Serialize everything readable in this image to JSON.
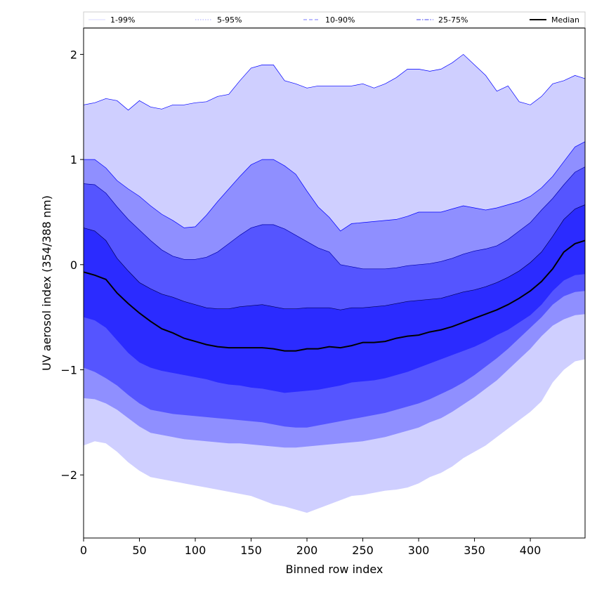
{
  "chart_data": {
    "type": "area",
    "xlabel": "Binned row index",
    "ylabel": "UV aerosol index (354/388 nm)",
    "xlim": [
      0,
      449
    ],
    "ylim": [
      -2.6,
      2.25
    ],
    "xticks": [
      0,
      50,
      100,
      150,
      200,
      250,
      300,
      350,
      400
    ],
    "yticks": [
      -2,
      -1,
      0,
      1,
      2
    ],
    "grid": false,
    "legend": "top",
    "x": [
      0,
      10,
      20,
      30,
      40,
      50,
      60,
      70,
      80,
      90,
      100,
      110,
      120,
      130,
      140,
      150,
      160,
      170,
      180,
      190,
      200,
      210,
      220,
      230,
      240,
      250,
      260,
      270,
      280,
      290,
      300,
      310,
      320,
      330,
      340,
      350,
      360,
      370,
      380,
      390,
      400,
      410,
      420,
      430,
      440,
      449
    ],
    "bands": [
      {
        "name": "1-99%",
        "color": "#cfcfff",
        "line_color": "#0000ff",
        "lower": [
          -1.72,
          -1.68,
          -1.7,
          -1.78,
          -1.88,
          -1.96,
          -2.02,
          -2.04,
          -2.06,
          -2.08,
          -2.1,
          -2.12,
          -2.14,
          -2.16,
          -2.18,
          -2.2,
          -2.24,
          -2.28,
          -2.3,
          -2.33,
          -2.36,
          -2.32,
          -2.28,
          -2.24,
          -2.2,
          -2.19,
          -2.17,
          -2.15,
          -2.14,
          -2.12,
          -2.08,
          -2.02,
          -1.98,
          -1.92,
          -1.84,
          -1.78,
          -1.72,
          -1.64,
          -1.56,
          -1.48,
          -1.4,
          -1.3,
          -1.12,
          -1.0,
          -0.92,
          -0.9
        ],
        "upper": [
          1.52,
          1.54,
          1.58,
          1.56,
          1.47,
          1.56,
          1.5,
          1.48,
          1.52,
          1.52,
          1.54,
          1.55,
          1.6,
          1.62,
          1.75,
          1.87,
          1.9,
          1.9,
          1.75,
          1.72,
          1.68,
          1.7,
          1.7,
          1.7,
          1.7,
          1.72,
          1.68,
          1.72,
          1.78,
          1.86,
          1.86,
          1.84,
          1.86,
          1.92,
          2.0,
          1.9,
          1.8,
          1.65,
          1.7,
          1.55,
          1.52,
          1.6,
          1.72,
          1.75,
          1.8,
          1.77
        ]
      },
      {
        "name": "5-95%",
        "color": "#8f8fff",
        "line_color": "#0000ff",
        "lower": [
          -1.27,
          -1.28,
          -1.32,
          -1.38,
          -1.46,
          -1.54,
          -1.6,
          -1.62,
          -1.64,
          -1.66,
          -1.67,
          -1.68,
          -1.69,
          -1.7,
          -1.7,
          -1.71,
          -1.72,
          -1.73,
          -1.74,
          -1.74,
          -1.73,
          -1.72,
          -1.71,
          -1.7,
          -1.69,
          -1.68,
          -1.66,
          -1.64,
          -1.61,
          -1.58,
          -1.55,
          -1.5,
          -1.46,
          -1.4,
          -1.33,
          -1.26,
          -1.18,
          -1.1,
          -1.0,
          -0.9,
          -0.8,
          -0.68,
          -0.58,
          -0.52,
          -0.48,
          -0.47
        ],
        "upper": [
          1.0,
          1.0,
          0.92,
          0.8,
          0.72,
          0.65,
          0.56,
          0.48,
          0.42,
          0.35,
          0.36,
          0.47,
          0.6,
          0.72,
          0.84,
          0.95,
          1.0,
          1.0,
          0.94,
          0.86,
          0.7,
          0.55,
          0.45,
          0.32,
          0.39,
          0.4,
          0.41,
          0.42,
          0.43,
          0.46,
          0.5,
          0.5,
          0.5,
          0.53,
          0.56,
          0.54,
          0.52,
          0.54,
          0.57,
          0.6,
          0.65,
          0.73,
          0.84,
          0.98,
          1.12,
          1.17
        ]
      },
      {
        "name": "10-90%",
        "color": "#5555ff",
        "line_color": "#0000aa",
        "lower": [
          -0.98,
          -1.02,
          -1.08,
          -1.15,
          -1.24,
          -1.32,
          -1.38,
          -1.4,
          -1.42,
          -1.43,
          -1.44,
          -1.45,
          -1.46,
          -1.47,
          -1.48,
          -1.49,
          -1.5,
          -1.52,
          -1.54,
          -1.55,
          -1.55,
          -1.53,
          -1.51,
          -1.49,
          -1.47,
          -1.45,
          -1.43,
          -1.41,
          -1.38,
          -1.35,
          -1.32,
          -1.28,
          -1.23,
          -1.18,
          -1.12,
          -1.05,
          -0.97,
          -0.89,
          -0.8,
          -0.7,
          -0.6,
          -0.5,
          -0.38,
          -0.3,
          -0.26,
          -0.25
        ],
        "upper": [
          0.77,
          0.76,
          0.68,
          0.55,
          0.43,
          0.33,
          0.23,
          0.14,
          0.08,
          0.05,
          0.05,
          0.07,
          0.12,
          0.2,
          0.28,
          0.35,
          0.38,
          0.38,
          0.34,
          0.28,
          0.22,
          0.16,
          0.12,
          0.0,
          -0.02,
          -0.04,
          -0.04,
          -0.04,
          -0.03,
          -0.01,
          0.0,
          0.01,
          0.03,
          0.06,
          0.1,
          0.13,
          0.15,
          0.18,
          0.24,
          0.32,
          0.4,
          0.52,
          0.63,
          0.76,
          0.88,
          0.93
        ]
      },
      {
        "name": "25-75%",
        "color": "#2b2bff",
        "line_color": "#000055",
        "lower": [
          -0.5,
          -0.53,
          -0.6,
          -0.72,
          -0.84,
          -0.93,
          -0.98,
          -1.01,
          -1.03,
          -1.05,
          -1.07,
          -1.09,
          -1.12,
          -1.14,
          -1.15,
          -1.17,
          -1.18,
          -1.2,
          -1.22,
          -1.21,
          -1.2,
          -1.19,
          -1.17,
          -1.15,
          -1.12,
          -1.11,
          -1.1,
          -1.08,
          -1.05,
          -1.02,
          -0.98,
          -0.94,
          -0.9,
          -0.86,
          -0.82,
          -0.78,
          -0.73,
          -0.67,
          -0.62,
          -0.55,
          -0.48,
          -0.38,
          -0.25,
          -0.15,
          -0.1,
          -0.09
        ],
        "upper": [
          0.35,
          0.32,
          0.23,
          0.06,
          -0.06,
          -0.17,
          -0.23,
          -0.28,
          -0.31,
          -0.35,
          -0.38,
          -0.41,
          -0.42,
          -0.42,
          -0.4,
          -0.39,
          -0.38,
          -0.4,
          -0.42,
          -0.42,
          -0.41,
          -0.41,
          -0.41,
          -0.43,
          -0.41,
          -0.41,
          -0.4,
          -0.39,
          -0.37,
          -0.35,
          -0.34,
          -0.33,
          -0.32,
          -0.29,
          -0.26,
          -0.24,
          -0.21,
          -0.17,
          -0.12,
          -0.06,
          0.02,
          0.12,
          0.27,
          0.43,
          0.53,
          0.57
        ]
      }
    ],
    "median": {
      "name": "Median",
      "color": "#000000",
      "values": [
        -0.07,
        -0.1,
        -0.14,
        -0.27,
        -0.37,
        -0.46,
        -0.54,
        -0.61,
        -0.65,
        -0.7,
        -0.73,
        -0.76,
        -0.78,
        -0.79,
        -0.79,
        -0.79,
        -0.79,
        -0.8,
        -0.82,
        -0.82,
        -0.8,
        -0.8,
        -0.78,
        -0.79,
        -0.77,
        -0.74,
        -0.74,
        -0.73,
        -0.7,
        -0.68,
        -0.67,
        -0.64,
        -0.62,
        -0.59,
        -0.55,
        -0.51,
        -0.47,
        -0.43,
        -0.38,
        -0.32,
        -0.25,
        -0.16,
        -0.04,
        0.12,
        0.2,
        0.23
      ]
    },
    "legend_entries": [
      {
        "label": "1-99%",
        "color": "#d8d8ff",
        "dash": "solid"
      },
      {
        "label": "5-95%",
        "color": "#a9a9ff",
        "dash": "dotted"
      },
      {
        "label": "10-90%",
        "color": "#7a7aff",
        "dash": "dashed"
      },
      {
        "label": "25-75%",
        "color": "#4545ee",
        "dash": "dashdot"
      },
      {
        "label": "Median",
        "color": "#000000",
        "dash": "solid"
      }
    ]
  }
}
